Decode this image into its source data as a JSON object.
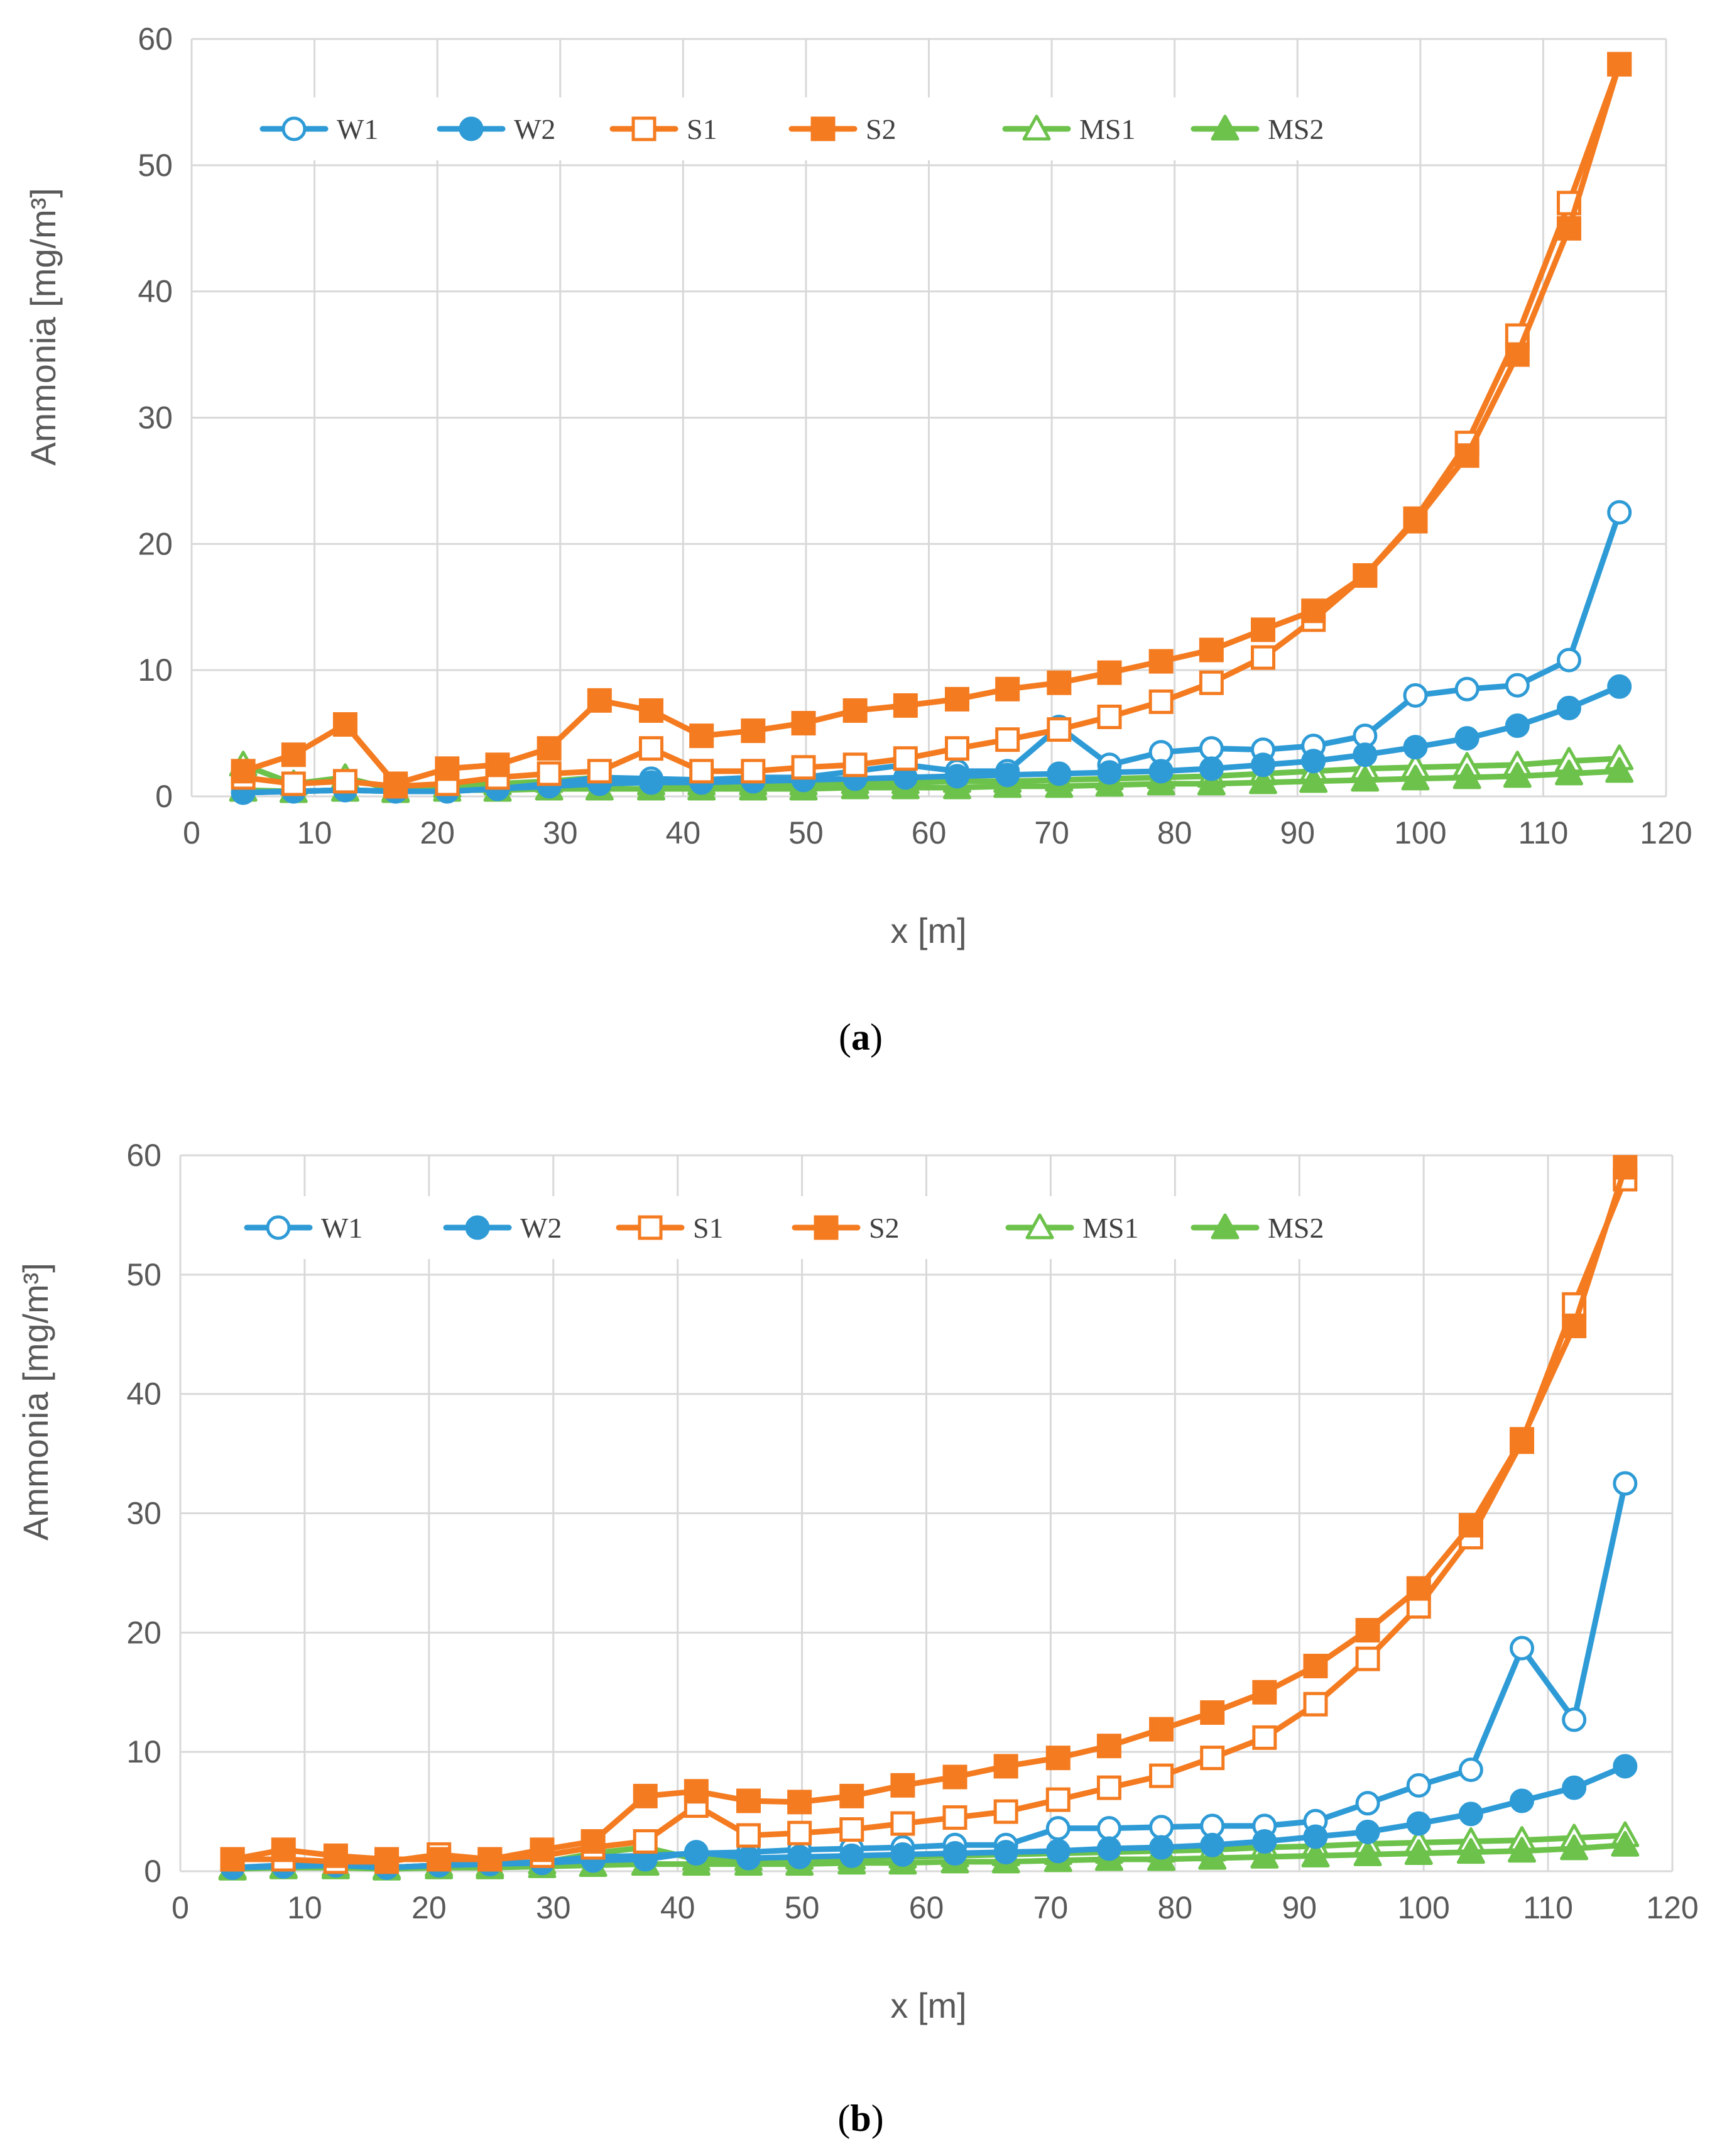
{
  "colors": {
    "W": "#2e9bd6",
    "S": "#f47b20",
    "MS": "#6cc24a",
    "grid": "#d9d9d9",
    "axis_text": "#595959"
  },
  "chart_data": [
    {
      "type": "line",
      "panel": "a",
      "panel_label": "a",
      "xlabel": "x [m]",
      "ylabel": "Ammonia [mg/m³]",
      "xlim": [
        0,
        120
      ],
      "ylim": [
        0,
        60
      ],
      "xticks": [
        0,
        10,
        20,
        30,
        40,
        50,
        60,
        70,
        80,
        90,
        100,
        110,
        120
      ],
      "yticks": [
        0,
        10,
        20,
        30,
        40,
        50,
        60
      ],
      "grid": true,
      "legend": "top",
      "x": [
        4.2,
        8.3,
        12.5,
        16.6,
        20.8,
        24.9,
        29.1,
        33.2,
        37.4,
        41.5,
        45.7,
        49.8,
        54,
        58.1,
        62.3,
        66.4,
        70.6,
        74.7,
        78.9,
        83,
        87.2,
        91.3,
        95.5,
        99.6,
        103.8,
        107.9,
        112.1,
        116.2
      ],
      "series": [
        {
          "name": "W1",
          "color_key": "W",
          "marker": "circle-open",
          "values": [
            0.3,
            0.4,
            0.5,
            0.4,
            0.4,
            0.6,
            1.0,
            1.5,
            1.4,
            1.3,
            1.5,
            1.5,
            2.0,
            2.5,
            2.0,
            2.0,
            5.5,
            2.5,
            3.5,
            3.8,
            3.7,
            4.0,
            4.8,
            8.0,
            8.5,
            8.8,
            10.8,
            22.5
          ]
        },
        {
          "name": "W2",
          "color_key": "W",
          "marker": "circle-filled",
          "values": [
            0.3,
            0.4,
            0.5,
            0.4,
            0.4,
            0.6,
            0.8,
            1.0,
            1.1,
            1.1,
            1.2,
            1.3,
            1.4,
            1.5,
            1.6,
            1.7,
            1.8,
            1.9,
            2.0,
            2.2,
            2.5,
            2.8,
            3.3,
            3.9,
            4.6,
            5.6,
            7.0,
            8.7
          ]
        },
        {
          "name": "S1",
          "color_key": "S",
          "marker": "square-open",
          "values": [
            1.5,
            1.0,
            1.2,
            0.8,
            1.0,
            1.5,
            1.8,
            2.0,
            3.8,
            2.0,
            2.0,
            2.3,
            2.5,
            3.0,
            3.8,
            4.5,
            5.3,
            6.3,
            7.5,
            9.0,
            11.0,
            14.0,
            17.5,
            22.0,
            28.0,
            36.5,
            47.0,
            58.0
          ]
        },
        {
          "name": "S2",
          "color_key": "S",
          "marker": "square-filled",
          "values": [
            2.0,
            3.3,
            5.7,
            1.0,
            2.2,
            2.5,
            3.8,
            7.6,
            6.8,
            4.8,
            5.2,
            5.8,
            6.8,
            7.2,
            7.7,
            8.5,
            9.0,
            9.8,
            10.7,
            11.6,
            13.2,
            14.7,
            17.5,
            21.8,
            27.0,
            35.0,
            45.0,
            58.0
          ]
        },
        {
          "name": "MS1",
          "color_key": "MS",
          "marker": "triangle-open",
          "values": [
            2.5,
            1.0,
            1.5,
            0.5,
            0.8,
            1.0,
            1.2,
            1.5,
            1.0,
            1.0,
            1.0,
            1.0,
            1.1,
            1.1,
            1.2,
            1.2,
            1.3,
            1.4,
            1.5,
            1.6,
            1.8,
            2.0,
            2.2,
            2.3,
            2.4,
            2.5,
            2.8,
            3.0
          ]
        },
        {
          "name": "MS2",
          "color_key": "MS",
          "marker": "triangle-filled",
          "values": [
            0.5,
            0.4,
            0.5,
            0.4,
            0.5,
            0.5,
            0.6,
            0.6,
            0.6,
            0.6,
            0.6,
            0.6,
            0.7,
            0.7,
            0.7,
            0.8,
            0.8,
            0.9,
            1.0,
            1.0,
            1.1,
            1.2,
            1.3,
            1.4,
            1.5,
            1.6,
            1.8,
            2.0
          ]
        }
      ]
    },
    {
      "type": "line",
      "panel": "b",
      "panel_label": "b",
      "xlabel": "x [m]",
      "ylabel": "Ammonia [mg/m³]",
      "xlim": [
        0,
        120
      ],
      "ylim": [
        0,
        60
      ],
      "xticks": [
        0,
        10,
        20,
        30,
        40,
        50,
        60,
        70,
        80,
        90,
        100,
        110,
        120
      ],
      "yticks": [
        0,
        10,
        20,
        30,
        40,
        50,
        60
      ],
      "grid": true,
      "legend": "top",
      "x": [
        4.2,
        8.3,
        12.5,
        16.6,
        20.8,
        24.9,
        29.1,
        33.2,
        37.4,
        41.5,
        45.7,
        49.8,
        54,
        58.1,
        62.3,
        66.4,
        70.6,
        74.7,
        78.9,
        83,
        87.2,
        91.3,
        95.5,
        99.6,
        103.8,
        107.9,
        112.1,
        116.2
      ],
      "series": [
        {
          "name": "W1",
          "color_key": "W",
          "marker": "circle-open",
          "values": [
            0.3,
            0.5,
            0.5,
            0.3,
            0.5,
            0.6,
            0.8,
            1.2,
            1.3,
            1.5,
            1.6,
            1.8,
            1.9,
            2.0,
            2.2,
            2.2,
            3.6,
            3.6,
            3.7,
            3.8,
            3.8,
            4.2,
            5.7,
            7.2,
            8.5,
            18.7,
            12.7,
            32.5
          ]
        },
        {
          "name": "W2",
          "color_key": "W",
          "marker": "circle-filled",
          "values": [
            0.3,
            0.4,
            0.5,
            0.3,
            0.5,
            0.6,
            0.7,
            0.9,
            1.0,
            1.6,
            1.1,
            1.2,
            1.3,
            1.4,
            1.5,
            1.6,
            1.7,
            1.9,
            2.0,
            2.2,
            2.5,
            2.9,
            3.3,
            4.0,
            4.8,
            5.9,
            7.0,
            8.8
          ]
        },
        {
          "name": "S1",
          "color_key": "S",
          "marker": "square-open",
          "values": [
            1.0,
            1.0,
            0.8,
            0.8,
            1.4,
            1.0,
            1.3,
            2.0,
            2.5,
            5.5,
            3.0,
            3.2,
            3.5,
            4.0,
            4.5,
            5.0,
            6.0,
            7.0,
            8.0,
            9.5,
            11.2,
            14.0,
            17.8,
            22.2,
            28.0,
            36.0,
            47.5,
            58.0
          ]
        },
        {
          "name": "S2",
          "color_key": "S",
          "marker": "square-filled",
          "values": [
            1.0,
            1.8,
            1.3,
            1.0,
            1.0,
            1.0,
            1.8,
            2.5,
            6.3,
            6.7,
            5.9,
            5.8,
            6.3,
            7.2,
            7.9,
            8.8,
            9.5,
            10.5,
            11.9,
            13.3,
            15.0,
            17.2,
            20.2,
            23.7,
            29.0,
            36.2,
            45.7,
            59.0
          ]
        },
        {
          "name": "MS1",
          "color_key": "MS",
          "marker": "triangle-open",
          "values": [
            0.3,
            0.4,
            0.5,
            0.3,
            0.5,
            0.5,
            0.7,
            1.5,
            2.0,
            1.0,
            1.0,
            1.1,
            1.1,
            1.2,
            1.3,
            1.4,
            1.5,
            1.6,
            1.7,
            1.8,
            2.0,
            2.1,
            2.3,
            2.4,
            2.5,
            2.6,
            2.8,
            3.0
          ]
        },
        {
          "name": "MS2",
          "color_key": "MS",
          "marker": "triangle-filled",
          "values": [
            0.2,
            0.3,
            0.3,
            0.2,
            0.3,
            0.3,
            0.4,
            0.5,
            0.6,
            0.6,
            0.6,
            0.6,
            0.7,
            0.7,
            0.8,
            0.8,
            0.9,
            1.0,
            1.0,
            1.1,
            1.2,
            1.3,
            1.4,
            1.5,
            1.6,
            1.7,
            1.9,
            2.2
          ]
        }
      ]
    }
  ]
}
